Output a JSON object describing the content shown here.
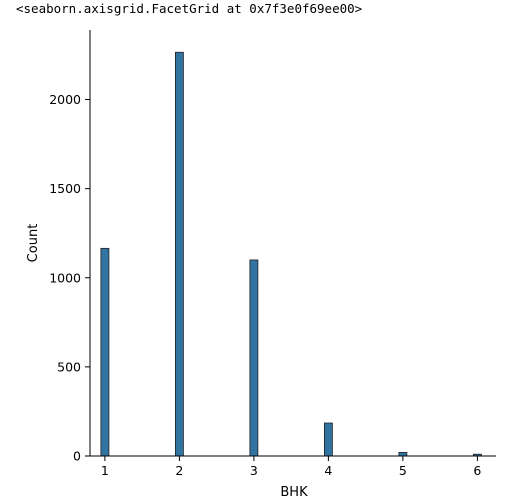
{
  "output_text": "<seaborn.axisgrid.FacetGrid at 0x7f3e0f69ee00>",
  "chart_data": {
    "type": "bar",
    "xlabel": "BHK",
    "ylabel": "Count",
    "x": [
      1,
      2,
      3,
      4,
      5,
      6
    ],
    "values": [
      1165,
      2265,
      1100,
      185,
      20,
      10
    ],
    "xlim": [
      0.8,
      6.25
    ],
    "ylim": [
      0,
      2390
    ],
    "xticks": [
      1,
      2,
      3,
      4,
      5,
      6
    ],
    "yticks": [
      0,
      500,
      1000,
      1500,
      2000
    ],
    "bar_color": "#3274a1",
    "bar_edge_color": "#1f1f1f",
    "grid": false
  }
}
